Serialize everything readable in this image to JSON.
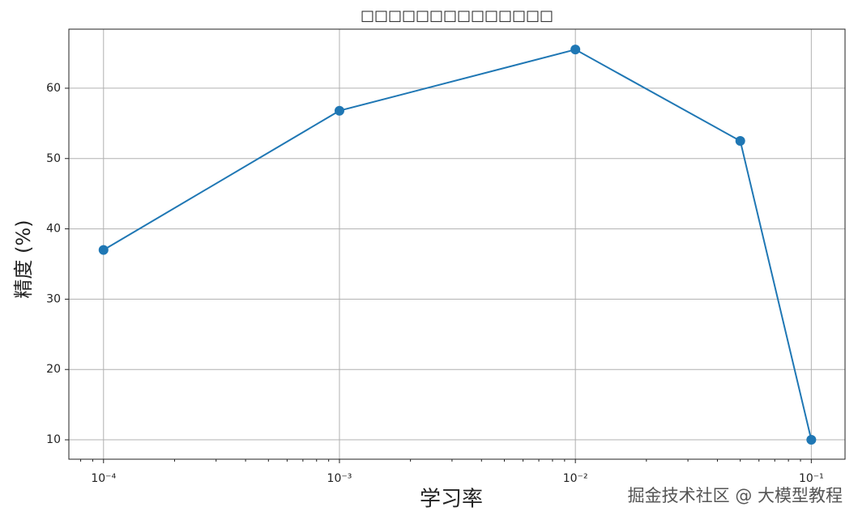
{
  "chart_data": {
    "type": "line",
    "title": "□□□□□□□□□□□□□□",
    "xlabel": "学习率",
    "ylabel": "精度 (%)",
    "x": [
      0.0001,
      0.001,
      0.01,
      0.05,
      0.1
    ],
    "series": [
      {
        "name": "精度",
        "color": "#1f77b4",
        "values": [
          37,
          56.8,
          65.5,
          52.5,
          10
        ]
      }
    ],
    "xscale": "log",
    "xlim": [
      7.13e-05,
      0.139
    ],
    "ylim": [
      7.24,
      68.4
    ],
    "xticks": [
      {
        "value": 0.0001,
        "label": "10⁻⁴"
      },
      {
        "value": 0.001,
        "label": "10⁻³"
      },
      {
        "value": 0.01,
        "label": "10⁻²"
      },
      {
        "value": 0.1,
        "label": "10⁻¹"
      }
    ],
    "yticks": [
      10,
      20,
      30,
      40,
      50,
      60
    ],
    "grid": true
  },
  "watermark": "掘金技术社区 @ 大模型教程"
}
